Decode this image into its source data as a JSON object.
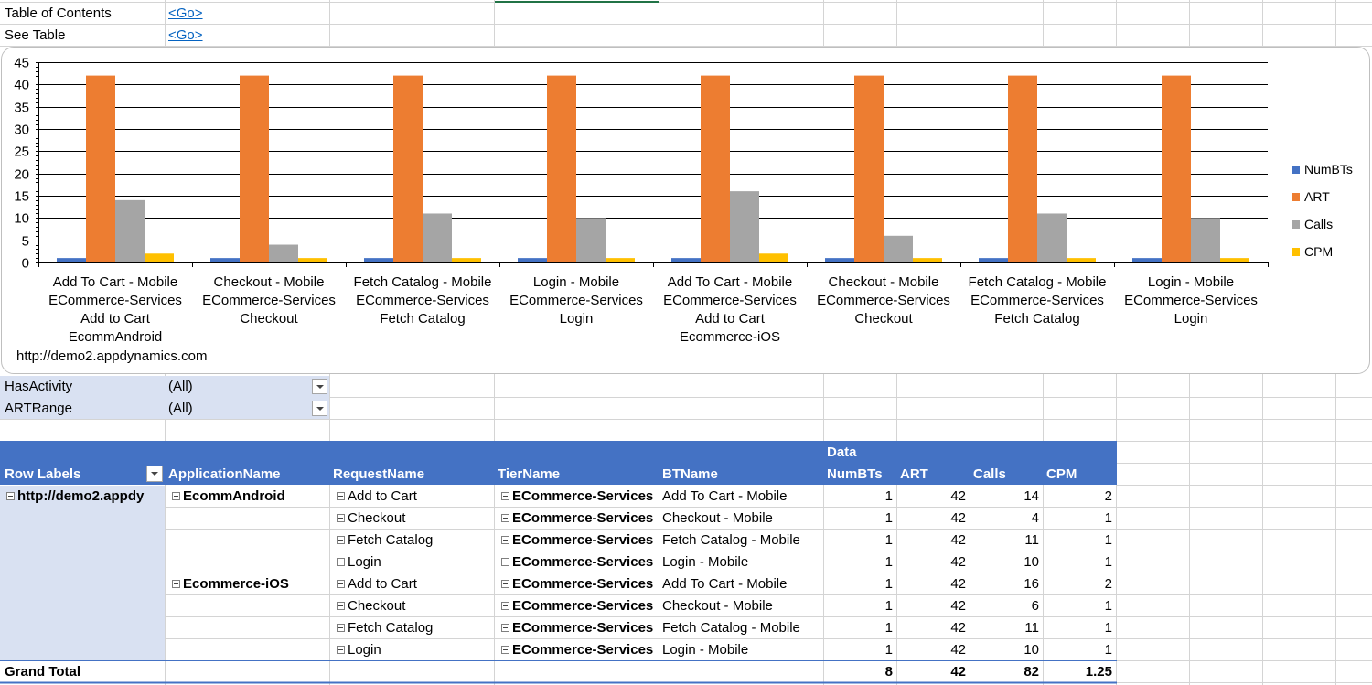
{
  "nav": {
    "toc_label": "Table of Contents",
    "toc_link": "<Go>",
    "see_table_label": "See Table",
    "see_table_link": "<Go>"
  },
  "chart_data": {
    "type": "bar",
    "ylim": [
      0,
      45
    ],
    "yticks": [
      0,
      5,
      10,
      15,
      20,
      25,
      30,
      35,
      40,
      45
    ],
    "grid": true,
    "legend": "right",
    "categories": [
      [
        "Add To Cart - Mobile",
        "ECommerce-Services",
        "Add to Cart",
        "EcommAndroid"
      ],
      [
        "Checkout - Mobile",
        "ECommerce-Services",
        "Checkout"
      ],
      [
        "Fetch Catalog - Mobile",
        "ECommerce-Services",
        "Fetch Catalog"
      ],
      [
        "Login - Mobile",
        "ECommerce-Services",
        "Login"
      ],
      [
        "Add To Cart - Mobile",
        "ECommerce-Services",
        "Add to Cart",
        "Ecommerce-iOS"
      ],
      [
        "Checkout - Mobile",
        "ECommerce-Services",
        "Checkout"
      ],
      [
        "Fetch Catalog - Mobile",
        "ECommerce-Services",
        "Fetch Catalog"
      ],
      [
        "Login - Mobile",
        "ECommerce-Services",
        "Login"
      ]
    ],
    "outer_category": "http://demo2.appdynamics.com",
    "series": [
      {
        "name": "NumBTs",
        "color": "#4472c4",
        "values": [
          1,
          1,
          1,
          1,
          1,
          1,
          1,
          1
        ]
      },
      {
        "name": "ART",
        "color": "#ed7d31",
        "values": [
          42,
          42,
          42,
          42,
          42,
          42,
          42,
          42
        ]
      },
      {
        "name": "Calls",
        "color": "#a5a5a5",
        "values": [
          14,
          4,
          11,
          10,
          16,
          6,
          11,
          10
        ]
      },
      {
        "name": "CPM",
        "color": "#ffc000",
        "values": [
          2,
          1,
          1,
          1,
          2,
          1,
          1,
          1
        ]
      }
    ]
  },
  "filters": [
    {
      "label": "HasActivity",
      "value": "(All)"
    },
    {
      "label": "ARTRange",
      "value": "(All)"
    }
  ],
  "pivot": {
    "data_label": "Data",
    "headers": {
      "row_labels": "Row Labels",
      "application": "ApplicationName",
      "request": "RequestName",
      "tier": "TierName",
      "bt": "BTName",
      "numbts": "NumBTs",
      "art": "ART",
      "calls": "Calls",
      "cpm": "CPM"
    },
    "row_label_value": "http://demo2.appdy",
    "applications": [
      "EcommAndroid",
      "Ecommerce-iOS"
    ],
    "rows": [
      {
        "app_index": 0,
        "request": "Add to Cart",
        "tier": "ECommerce-Services",
        "bt": "Add To Cart - Mobile",
        "numbts": "1",
        "art": "42",
        "calls": "14",
        "cpm": "2"
      },
      {
        "app_index": -1,
        "request": "Checkout",
        "tier": "ECommerce-Services",
        "bt": "Checkout - Mobile",
        "numbts": "1",
        "art": "42",
        "calls": "4",
        "cpm": "1"
      },
      {
        "app_index": -1,
        "request": "Fetch Catalog",
        "tier": "ECommerce-Services",
        "bt": "Fetch Catalog - Mobile",
        "numbts": "1",
        "art": "42",
        "calls": "11",
        "cpm": "1"
      },
      {
        "app_index": -1,
        "request": "Login",
        "tier": "ECommerce-Services",
        "bt": "Login - Mobile",
        "numbts": "1",
        "art": "42",
        "calls": "10",
        "cpm": "1"
      },
      {
        "app_index": 1,
        "request": "Add to Cart",
        "tier": "ECommerce-Services",
        "bt": "Add To Cart - Mobile",
        "numbts": "1",
        "art": "42",
        "calls": "16",
        "cpm": "2"
      },
      {
        "app_index": -1,
        "request": "Checkout",
        "tier": "ECommerce-Services",
        "bt": "Checkout - Mobile",
        "numbts": "1",
        "art": "42",
        "calls": "6",
        "cpm": "1"
      },
      {
        "app_index": -1,
        "request": "Fetch Catalog",
        "tier": "ECommerce-Services",
        "bt": "Fetch Catalog - Mobile",
        "numbts": "1",
        "art": "42",
        "calls": "11",
        "cpm": "1"
      },
      {
        "app_index": -1,
        "request": "Login",
        "tier": "ECommerce-Services",
        "bt": "Login - Mobile",
        "numbts": "1",
        "art": "42",
        "calls": "10",
        "cpm": "1"
      }
    ],
    "grand_total": {
      "label": "Grand Total",
      "numbts": "8",
      "art": "42",
      "calls": "82",
      "cpm": "1.25"
    }
  }
}
